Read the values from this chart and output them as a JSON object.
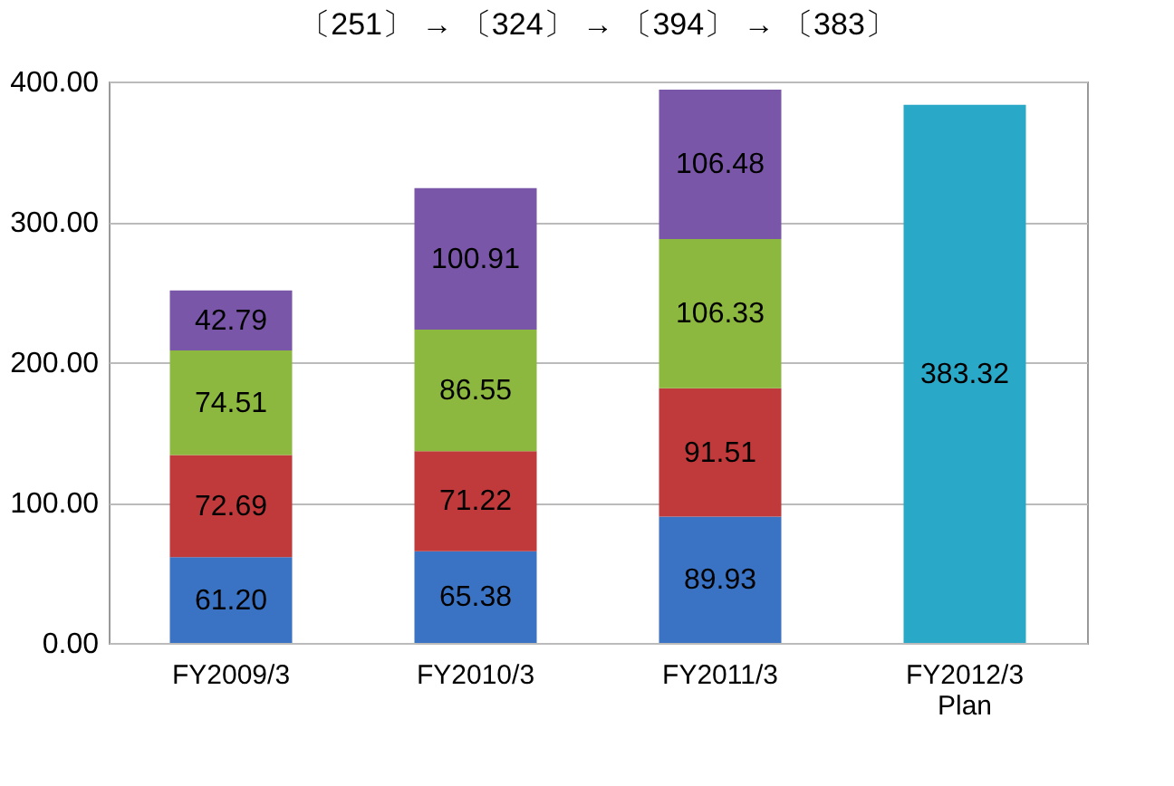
{
  "chart_data": {
    "type": "bar",
    "stacked": true,
    "categories": [
      "FY2009/3",
      "FY2010/3",
      "FY2011/3",
      "FY2012/3\nPlan"
    ],
    "series": [
      {
        "color": "#3a73c4",
        "values": [
          61.2,
          65.38,
          89.93,
          null
        ],
        "value_labels": [
          "61.20",
          "65.38",
          "89.93",
          null
        ]
      },
      {
        "color": "#c0393b",
        "values": [
          72.69,
          71.22,
          91.51,
          null
        ],
        "value_labels": [
          "72.69",
          "71.22",
          "91.51",
          null
        ]
      },
      {
        "color": "#8db83f",
        "values": [
          74.51,
          86.55,
          106.33,
          null
        ],
        "value_labels": [
          "74.51",
          "86.55",
          "106.33",
          null
        ]
      },
      {
        "color": "#7a56a8",
        "values": [
          42.79,
          100.91,
          106.48,
          null
        ],
        "value_labels": [
          "42.79",
          "100.91",
          "106.48",
          null
        ]
      },
      {
        "color": "#2aa8c8",
        "values": [
          null,
          null,
          null,
          383.32
        ],
        "value_labels": [
          null,
          null,
          null,
          "383.32"
        ]
      }
    ],
    "ylim": [
      0,
      400
    ],
    "yticks": [
      {
        "value": 0,
        "label": "0.00"
      },
      {
        "value": 100,
        "label": "100.00"
      },
      {
        "value": 200,
        "label": "200.00"
      },
      {
        "value": 300,
        "label": "300.00"
      },
      {
        "value": 400,
        "label": "400.00"
      }
    ],
    "grid": "y",
    "annotations": [
      "〔251〕 → 〔324〕 → 〔394〕 → 〔383〕"
    ]
  }
}
